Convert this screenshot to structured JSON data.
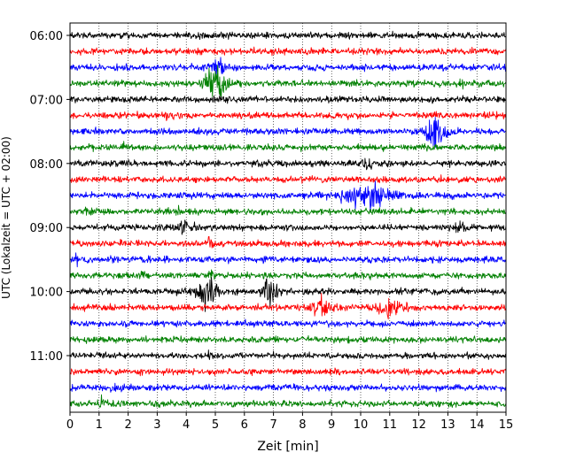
{
  "chart_data": {
    "type": "line",
    "title": "",
    "xlabel": "Zeit  [min]",
    "ylabel": "UTC (Lokalzeit = UTC + 02:00)",
    "xlim": [
      0,
      15
    ],
    "x_ticks": [
      "0",
      "1",
      "2",
      "3",
      "4",
      "5",
      "6",
      "7",
      "8",
      "9",
      "10",
      "11",
      "12",
      "13",
      "14",
      "15"
    ],
    "y_tick_labels": [
      "06:00",
      "07:00",
      "08:00",
      "09:00",
      "10:00",
      "11:00"
    ],
    "row_interval_min": 15,
    "grid": "vertical dotted at each minute",
    "colors": [
      "#000000",
      "#ff0000",
      "#0000ff",
      "#008000"
    ],
    "rows": [
      {
        "start": "06:00",
        "color": "#000000",
        "events": []
      },
      {
        "start": "06:15",
        "color": "#ff0000",
        "events": []
      },
      {
        "start": "06:30",
        "color": "#0000ff",
        "events": [
          {
            "t": 5.1,
            "amp": 3.5,
            "dur": 0.4
          }
        ]
      },
      {
        "start": "06:45",
        "color": "#008000",
        "events": [
          {
            "t": 5.0,
            "amp": 5.5,
            "dur": 0.6
          },
          {
            "t": 13.5,
            "amp": 1.0,
            "dur": 0.2
          }
        ]
      },
      {
        "start": "07:00",
        "color": "#000000",
        "events": []
      },
      {
        "start": "07:15",
        "color": "#ff0000",
        "events": [
          {
            "t": 3.3,
            "amp": 1.0,
            "dur": 0.2
          }
        ]
      },
      {
        "start": "07:30",
        "color": "#0000ff",
        "events": [
          {
            "t": 12.6,
            "amp": 4.5,
            "dur": 0.8
          }
        ]
      },
      {
        "start": "07:45",
        "color": "#008000",
        "events": [
          {
            "t": 1.9,
            "amp": 0.8,
            "dur": 0.2
          }
        ]
      },
      {
        "start": "08:00",
        "color": "#000000",
        "events": [
          {
            "t": 10.2,
            "amp": 2.0,
            "dur": 0.3
          }
        ]
      },
      {
        "start": "08:15",
        "color": "#ff0000",
        "events": []
      },
      {
        "start": "08:30",
        "color": "#0000ff",
        "events": [
          {
            "t": 10.2,
            "amp": 4.0,
            "dur": 1.6
          }
        ]
      },
      {
        "start": "08:45",
        "color": "#008000",
        "events": [
          {
            "t": 0.6,
            "amp": 0.9,
            "dur": 0.2
          },
          {
            "t": 3.7,
            "amp": 0.8,
            "dur": 0.2
          }
        ]
      },
      {
        "start": "09:00",
        "color": "#000000",
        "events": [
          {
            "t": 4.0,
            "amp": 1.5,
            "dur": 0.8
          },
          {
            "t": 13.4,
            "amp": 1.6,
            "dur": 0.3
          }
        ]
      },
      {
        "start": "09:15",
        "color": "#ff0000",
        "events": [
          {
            "t": 4.8,
            "amp": 1.5,
            "dur": 0.2
          }
        ]
      },
      {
        "start": "09:30",
        "color": "#0000ff",
        "events": [
          {
            "t": 0.2,
            "amp": 1.2,
            "dur": 0.2
          },
          {
            "t": 1.5,
            "amp": 0.8,
            "dur": 0.3
          }
        ]
      },
      {
        "start": "09:45",
        "color": "#008000",
        "events": [
          {
            "t": 2.5,
            "amp": 0.8,
            "dur": 0.2
          },
          {
            "t": 4.8,
            "amp": 1.5,
            "dur": 0.2
          }
        ]
      },
      {
        "start": "10:00",
        "color": "#000000",
        "events": [
          {
            "t": 4.7,
            "amp": 4.5,
            "dur": 0.6
          },
          {
            "t": 6.9,
            "amp": 4.0,
            "dur": 0.6
          }
        ]
      },
      {
        "start": "10:15",
        "color": "#ff0000",
        "events": [
          {
            "t": 8.7,
            "amp": 3.0,
            "dur": 0.7
          },
          {
            "t": 11.0,
            "amp": 2.8,
            "dur": 0.8
          }
        ]
      },
      {
        "start": "10:30",
        "color": "#0000ff",
        "events": []
      },
      {
        "start": "10:45",
        "color": "#008000",
        "events": []
      },
      {
        "start": "11:00",
        "color": "#000000",
        "events": [
          {
            "t": 4.8,
            "amp": 1.0,
            "dur": 0.2
          }
        ]
      },
      {
        "start": "11:15",
        "color": "#ff0000",
        "events": []
      },
      {
        "start": "11:30",
        "color": "#0000ff",
        "events": [
          {
            "t": 1.6,
            "amp": 0.8,
            "dur": 0.3
          }
        ]
      },
      {
        "start": "11:45",
        "color": "#008000",
        "events": [
          {
            "t": 1.1,
            "amp": 1.5,
            "dur": 0.2
          }
        ]
      }
    ]
  }
}
